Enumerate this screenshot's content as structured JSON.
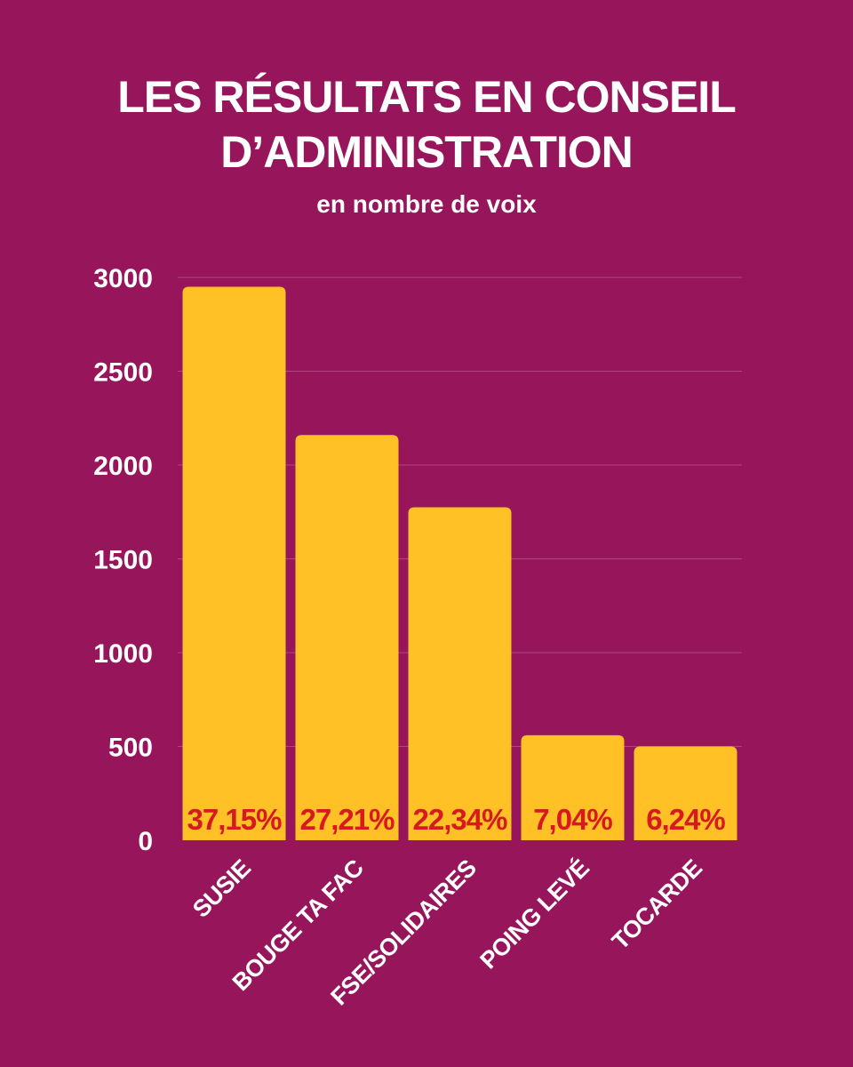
{
  "title": {
    "line1": "LES RÉSULTATS EN CONSEIL",
    "line2": "D’ADMINISTRATION",
    "subtitle": "en nombre de voix"
  },
  "colors": {
    "background": "#96155b",
    "bar": "#ffc125",
    "percent_text": "#d71920",
    "text": "#ffffff"
  },
  "chart_data": {
    "type": "bar",
    "title": "LES RÉSULTATS EN CONSEIL D’ADMINISTRATION",
    "subtitle": "en nombre de voix",
    "xlabel": "",
    "ylabel": "",
    "ylim": [
      0,
      3000
    ],
    "yticks": [
      0,
      500,
      1000,
      1500,
      2000,
      2500,
      3000
    ],
    "grid": true,
    "categories": [
      "SUSIE",
      "BOUGE TA FAC",
      "FSE/SOLIDAIRES",
      "POING LEVÉ",
      "TOCARDE"
    ],
    "values": [
      2950,
      2160,
      1775,
      560,
      500
    ],
    "percent_labels": [
      "37,15%",
      "27,21%",
      "22,34%",
      "7,04%",
      "6,24%"
    ]
  }
}
